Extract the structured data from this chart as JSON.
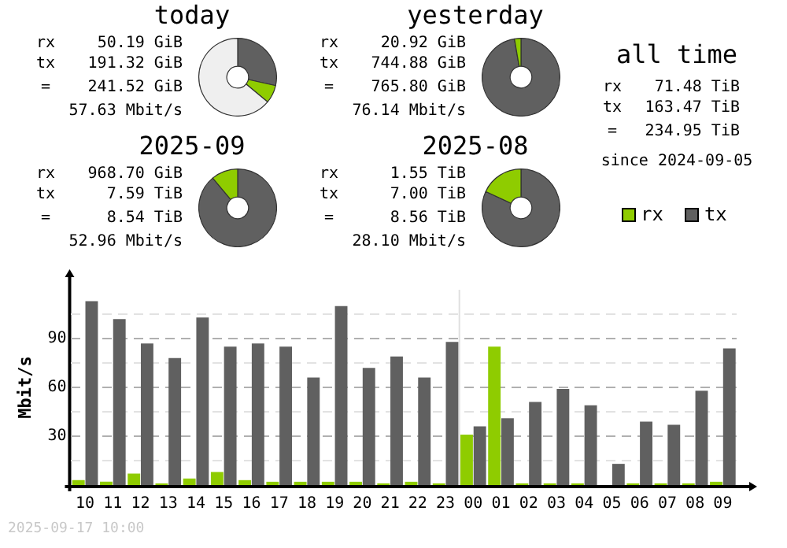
{
  "chart_data": [
    {
      "type": "donut",
      "title": "today",
      "categories": [
        null,
        null,
        null
      ],
      "values": [
        28.5,
        7.5,
        64
      ],
      "colors": [
        "#606060",
        "#8fcc00",
        "#efefef"
      ],
      "annotations": [
        "rx",
        "50.19 GiB",
        "tx",
        "191.32 GiB",
        "=",
        "241.52 GiB",
        "57.63 Mbit/s"
      ]
    },
    {
      "type": "donut",
      "title": "yesterday",
      "categories": [
        null,
        null
      ],
      "values": [
        97.3,
        2.7
      ],
      "colors": [
        "#606060",
        "#8fcc00"
      ],
      "annotations": [
        "rx",
        "20.92 GiB",
        "tx",
        "744.88 GiB",
        "=",
        "765.80 GiB",
        "76.14 Mbit/s"
      ]
    },
    {
      "type": "other",
      "title": "all time",
      "annotations": [
        "rx",
        "71.48 TiB",
        "tx",
        "163.47 TiB",
        "=",
        "234.95 TiB",
        "since 2024-09-05"
      ]
    },
    {
      "type": "donut",
      "title": "2025-09",
      "categories": [
        null,
        null
      ],
      "values": [
        88.9,
        11.1
      ],
      "colors": [
        "#606060",
        "#8fcc00"
      ],
      "annotations": [
        "rx",
        "968.70 GiB",
        "tx",
        "7.59 TiB",
        "=",
        "8.54 TiB",
        "52.96 Mbit/s"
      ]
    },
    {
      "type": "donut",
      "title": "2025-08",
      "categories": [
        null,
        null
      ],
      "values": [
        81.9,
        18.1
      ],
      "colors": [
        "#606060",
        "#8fcc00"
      ],
      "annotations": [
        "rx",
        "1.55 TiB",
        "tx",
        "7.00 TiB",
        "=",
        "8.56 TiB",
        "28.10 Mbit/s"
      ]
    },
    {
      "type": "bar",
      "ylabel": "Mbit/s",
      "legend": "top right",
      "grid": "y",
      "categories": [
        "10",
        "11",
        "12",
        "13",
        "14",
        "15",
        "16",
        "17",
        "18",
        "19",
        "20",
        "21",
        "22",
        "23",
        "00",
        "01",
        "02",
        "03",
        "04",
        "05",
        "06",
        "07",
        "08",
        "09"
      ],
      "series": [
        {
          "name": "rx",
          "color": "#8fcc00",
          "values": [
            3,
            2,
            7,
            1,
            4,
            8,
            3,
            2,
            2,
            2,
            2,
            1,
            2,
            1,
            31,
            85,
            1,
            1,
            1,
            0,
            1,
            1,
            1,
            2
          ]
        },
        {
          "name": "tx",
          "color": "#606060",
          "values": [
            113,
            102,
            87,
            78,
            103,
            85,
            87,
            85,
            66,
            110,
            72,
            79,
            66,
            88,
            36,
            41,
            51,
            59,
            49,
            13,
            39,
            37,
            58,
            84
          ]
        }
      ],
      "ylim": [
        0,
        120
      ],
      "yticks": [
        {
          "value": 15,
          "label": null
        },
        30,
        {
          "value": 45,
          "label": null
        },
        60,
        {
          "value": 75,
          "label": null
        },
        90,
        {
          "value": 105,
          "label": null
        }
      ],
      "ref_lines": [
        {
          "axis": "x",
          "value": "00",
          "color": "#e0e0e0"
        }
      ],
      "annotations": [
        "2025-09-17 10:00"
      ]
    }
  ]
}
